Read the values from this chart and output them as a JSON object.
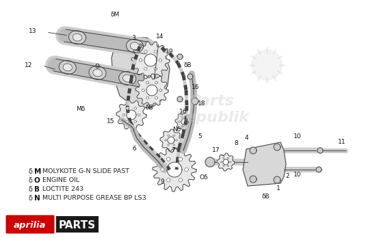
{
  "bg_color": "#ffffff",
  "legend_items": [
    {
      "symbol": "M",
      "text": "MOLYKOTE G-N SLIDE PAST"
    },
    {
      "symbol": "O",
      "text": "ENGINE OIL"
    },
    {
      "symbol": "B",
      "text": "LOCTITE 243"
    },
    {
      "symbol": "N",
      "text": "MULTI PURPOSE GREASE BP LS3"
    }
  ],
  "watermark_lines": [
    "Parts",
    "Republik"
  ],
  "aprilia_text": "aprilia",
  "parts_text": "PARTS",
  "aprilia_color": "#cc0000",
  "parts_bg": "#1a1a1a",
  "parts_color": "#ffffff",
  "draw_color": "#444444",
  "light_fill": "#e8e8e8",
  "mid_fill": "#cccccc",
  "dark_line": "#333333"
}
